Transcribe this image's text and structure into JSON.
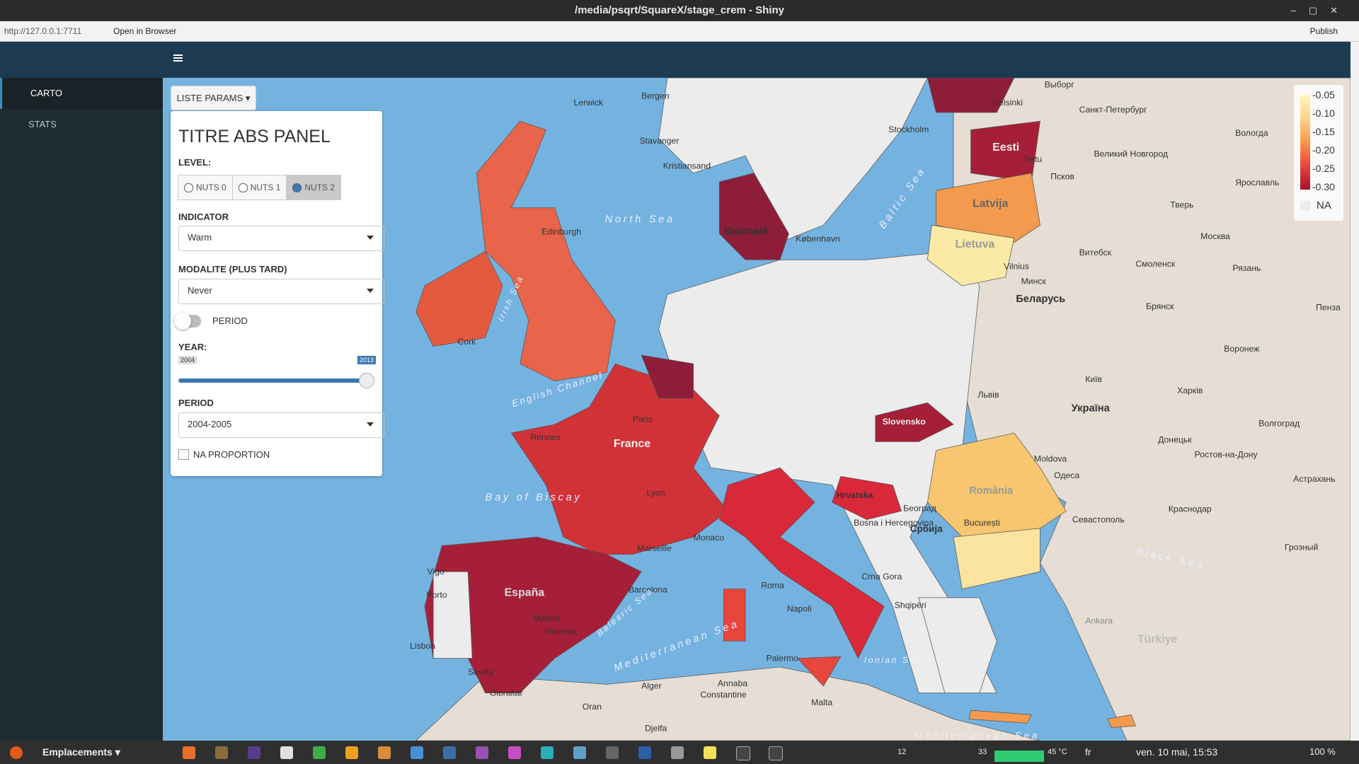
{
  "window": {
    "title": "/media/psqrt/SquareX/stage_crem - Shiny",
    "url": "http://127.0.0.1:7711",
    "open_browser": "Open in Browser",
    "publish": "Publish"
  },
  "sidebar": {
    "items": [
      "CARTO",
      "STATS"
    ]
  },
  "panel": {
    "toggle_button": "LISTE PARAMS",
    "title": "TITRE ABS PANEL",
    "level_label": "LEVEL:",
    "levels": [
      {
        "label": "NUTS 0",
        "selected": false
      },
      {
        "label": "NUTS 1",
        "selected": false
      },
      {
        "label": "NUTS 2",
        "selected": true
      }
    ],
    "indicator_label": "INDICATOR",
    "indicator": "Warm",
    "modalite_label": "MODALITE (PLUS TARD)",
    "modalite": "Never",
    "period_toggle": "PERIOD",
    "year_label": "YEAR:",
    "year_min": 2004,
    "year_max": 2013,
    "year_value": 2013,
    "period_label": "PERIOD",
    "period": "2004-2005",
    "na_proportion": "NA PROPORTION"
  },
  "legend": {
    "labels": [
      "-0.05",
      "-0.10",
      "-0.15",
      "-0.20",
      "-0.25",
      "-0.30"
    ],
    "na": "NA"
  },
  "map_labels": [
    "Lerwick",
    "Bergen",
    "Stavanger",
    "Kristiansand",
    "Stockholm",
    "Helsinki",
    "Выборг",
    "Санкт-Петербург",
    "Eesti",
    "Tartu",
    "Псков",
    "Вологда",
    "Великий Новгород",
    "Ярославль",
    "Тверь",
    "Latvija",
    "Lietuva",
    "Москва",
    "Vilnius",
    "Витебск",
    "Смоленск",
    "Минск",
    "Беларусь",
    "Рязань",
    "Брянск",
    "Пенза",
    "Воронеж",
    "Київ",
    "Харків",
    "Львів",
    "Україна",
    "Волгоград",
    "Донецьк",
    "Ростов-на-Дону",
    "Moldova",
    "Одеса",
    "Астрахань",
    "Севастополь",
    "Краснодар",
    "Black Sea",
    "Грозный",
    "North Sea",
    "Baltic Sea",
    "Danmark",
    "København",
    "Irish Sea",
    "English Channel",
    "Bay of Biscay",
    "France",
    "Paris",
    "Rennes",
    "Lyon",
    "Marseille",
    "Monaco",
    "Barcelona",
    "España",
    "Madrid",
    "Valencia",
    "Porto",
    "Lisboa",
    "Vigo",
    "Sevilla",
    "Gibraltar",
    "Oran",
    "Alger",
    "Annaba",
    "Constantine",
    "Djelfa",
    "Roma",
    "Napoli",
    "Palermo",
    "Malta",
    "Mediterranean Sea",
    "Balearic Sea",
    "Ionian Sea",
    "Hrvatska",
    "Bosna i Hercegovina",
    "Србија",
    "Београд",
    "România",
    "București",
    "Crna Gora",
    "Shqipëri",
    "Slovensko",
    "Türkiye",
    "Ankara",
    "Edinburgh",
    "Cork",
    "Mediterranean Sea"
  ],
  "taskbar": {
    "menu": "Emplacements",
    "cpu": "12",
    "mem": "33",
    "temp": "45 °C",
    "lang": "fr",
    "clock": "ven. 10 mai, 15:53",
    "battery": "100 %"
  }
}
